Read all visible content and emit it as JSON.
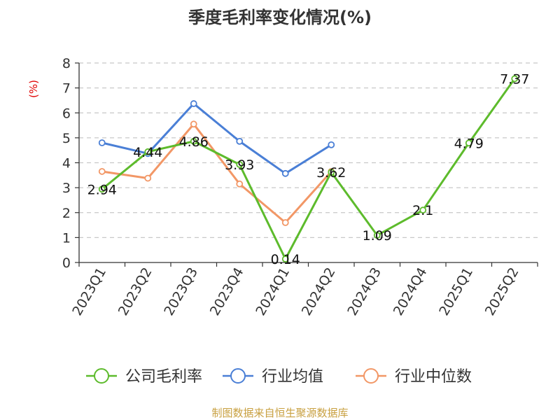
{
  "chart_data": {
    "type": "line",
    "title": "季度毛利率变化情况(%)",
    "ylabel": "(%)",
    "xlabel": "",
    "ylim": [
      0,
      8
    ],
    "yticks": [
      0,
      1,
      2,
      3,
      4,
      5,
      6,
      7,
      8
    ],
    "grid": true,
    "legend_position": "bottom",
    "categories": [
      "2023Q1",
      "2023Q2",
      "2023Q3",
      "2023Q4",
      "2024Q1",
      "2024Q2",
      "2024Q3",
      "2024Q4",
      "2025Q1",
      "2025Q2"
    ],
    "series": [
      {
        "name": "公司毛利率",
        "color": "#5dbb2c",
        "values": [
          2.94,
          4.44,
          4.86,
          3.93,
          0.14,
          3.62,
          1.09,
          2.1,
          4.79,
          7.37
        ],
        "labels": [
          "2.94",
          "4.44",
          "4.86",
          "3.93",
          "0.14",
          "3.62",
          "1.09",
          "2.1",
          "4.79",
          "7.37"
        ]
      },
      {
        "name": "行业均值",
        "color": "#4a7fd6",
        "values": [
          4.8,
          4.37,
          6.37,
          4.86,
          3.57,
          4.72,
          null,
          null,
          null,
          null
        ]
      },
      {
        "name": "行业中位数",
        "color": "#f29766",
        "values": [
          3.65,
          3.38,
          5.55,
          3.15,
          1.6,
          3.65,
          null,
          null,
          null,
          null
        ]
      }
    ]
  },
  "source": "制图数据来自恒生聚源数据库"
}
